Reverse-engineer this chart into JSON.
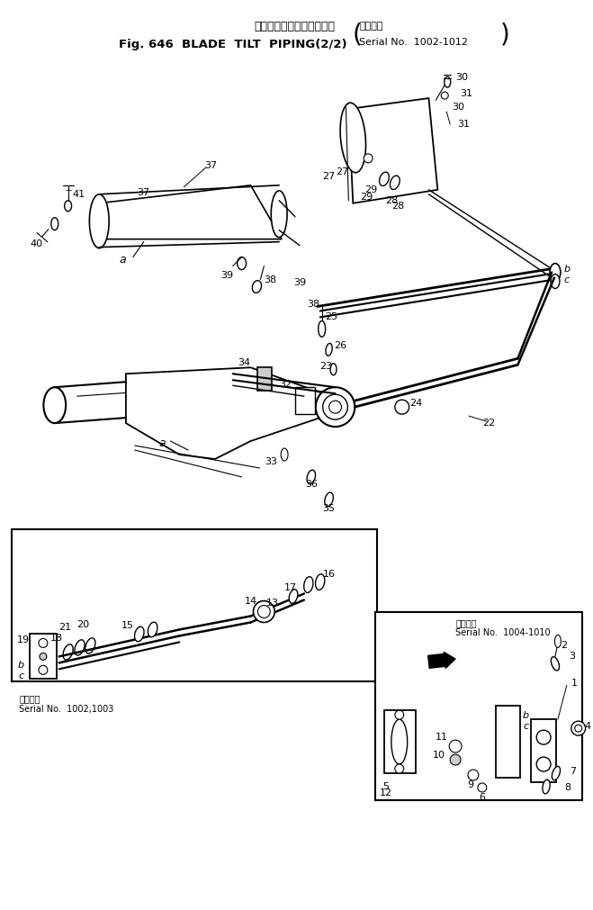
{
  "bg_color": "#ffffff",
  "fig_width": 6.59,
  "fig_height": 10.11,
  "dpi": 100,
  "title_jp": "ブレードチルトパイピング",
  "title_en": "Fig. 646  BLADE  TILT  PIPING(2/2)",
  "serial_jp": "適用号機",
  "serial_en": "Serial No.  1002-1012",
  "serial1_jp": "適用号機",
  "serial1_en": "Serial No.  1002,1003",
  "serial2_jp": "適用号機",
  "serial2_en": "Serial No.  1004-1010"
}
